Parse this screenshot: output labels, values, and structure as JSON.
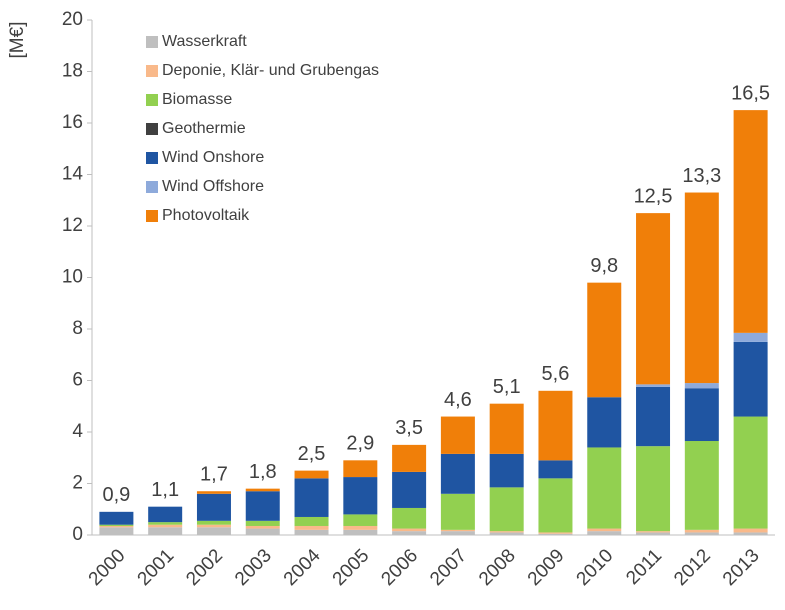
{
  "chart_data": {
    "type": "stacked_bar",
    "y_label": "[M€]",
    "categories": [
      "2000",
      "2001",
      "2002",
      "2003",
      "2004",
      "2005",
      "2006",
      "2007",
      "2008",
      "2009",
      "2010",
      "2011",
      "2012",
      "2013"
    ],
    "series": [
      {
        "name": "Wasserkraft",
        "color": "#bfbfbf",
        "values": [
          0.3,
          0.3,
          0.3,
          0.25,
          0.2,
          0.2,
          0.15,
          0.15,
          0.1,
          0.05,
          0.15,
          0.1,
          0.1,
          0.1
        ]
      },
      {
        "name": "Deponie, Klär- und Grubengas",
        "color": "#f9b98a",
        "values": [
          0.05,
          0.1,
          0.1,
          0.1,
          0.15,
          0.15,
          0.1,
          0.05,
          0.05,
          0.05,
          0.1,
          0.05,
          0.1,
          0.15
        ]
      },
      {
        "name": "Biomasse",
        "color": "#92d050",
        "values": [
          0.05,
          0.1,
          0.15,
          0.2,
          0.35,
          0.45,
          0.8,
          1.4,
          1.7,
          2.1,
          3.15,
          3.3,
          3.45,
          4.35
        ]
      },
      {
        "name": "Geothermie",
        "color": "#404040",
        "values": [
          0,
          0,
          0,
          0,
          0,
          0,
          0,
          0,
          0,
          0,
          0,
          0,
          0,
          0
        ]
      },
      {
        "name": "Wind Onshore",
        "color": "#1f55a2",
        "values": [
          0.5,
          0.6,
          1.05,
          1.15,
          1.5,
          1.45,
          1.4,
          1.55,
          1.3,
          0.7,
          1.95,
          2.3,
          2.05,
          2.9
        ]
      },
      {
        "name": "Wind Offshore",
        "color": "#8eaadb",
        "values": [
          0,
          0,
          0,
          0,
          0,
          0,
          0,
          0,
          0,
          0,
          0,
          0.1,
          0.2,
          0.35
        ]
      },
      {
        "name": "Photovoltaik",
        "color": "#f07f09",
        "values": [
          0,
          0,
          0.1,
          0.1,
          0.3,
          0.65,
          1.05,
          1.45,
          1.95,
          2.7,
          4.45,
          6.65,
          7.4,
          8.65
        ]
      }
    ],
    "totals": {
      "values": [
        0.9,
        1.1,
        1.7,
        1.8,
        2.5,
        2.9,
        3.5,
        4.6,
        5.1,
        5.6,
        9.8,
        12.5,
        13.3,
        16.5
      ],
      "value_labels": [
        "0,9",
        "1,1",
        "1,7",
        "1,8",
        "2,5",
        "2,9",
        "3,5",
        "4,6",
        "5,1",
        "5,6",
        "9,8",
        "12,5",
        "13,3",
        "16,5"
      ]
    },
    "ylim": [
      0,
      20
    ],
    "yticks": [
      0,
      2,
      4,
      6,
      8,
      10,
      12,
      14,
      16,
      18,
      20
    ],
    "grid": false
  }
}
